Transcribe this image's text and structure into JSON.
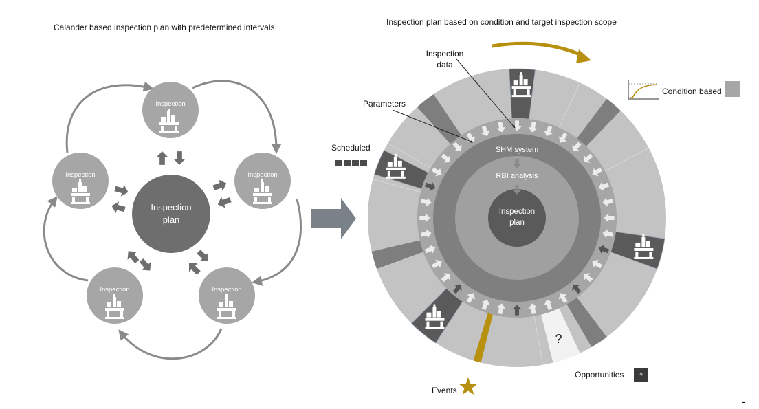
{
  "left": {
    "title": "Calander based inspection plan with predetermined intervals",
    "center_label_1": "Inspection",
    "center_label_2": "plan",
    "node_label": "Inspection"
  },
  "right": {
    "title": "Inspection plan based on condition and target inspection scope",
    "inspection_data_1": "Inspection",
    "inspection_data_2": "data",
    "parameters": "Parameters",
    "scheduled": "Scheduled",
    "condition_based": "Condition based",
    "shm_system": "SHM system",
    "rbi_analysis": "RBI analysis",
    "center_label_1": "Inspection",
    "center_label_2": "plan",
    "question_mark": "?",
    "opportunities": "Opportunities",
    "opportunities_badge": "?",
    "events": "Events"
  },
  "dash": "-",
  "colors": {
    "outer_ring": "#c3c3c3",
    "scheduled_segment": "#5a5a5a",
    "condition_segment": "#7e7e7e",
    "gold": "#b8900f",
    "inner_ring": "#a6a6a6",
    "shm_ring": "#7f7f7f",
    "rbi_ring": "#a0a0a0",
    "center": "#5a5a5a",
    "node": "#a6a6a6",
    "left_center": "#6e6e6e"
  },
  "icons": [
    "oil-platform-icon",
    "arrow-icon",
    "star-icon",
    "step-response-icon"
  ]
}
